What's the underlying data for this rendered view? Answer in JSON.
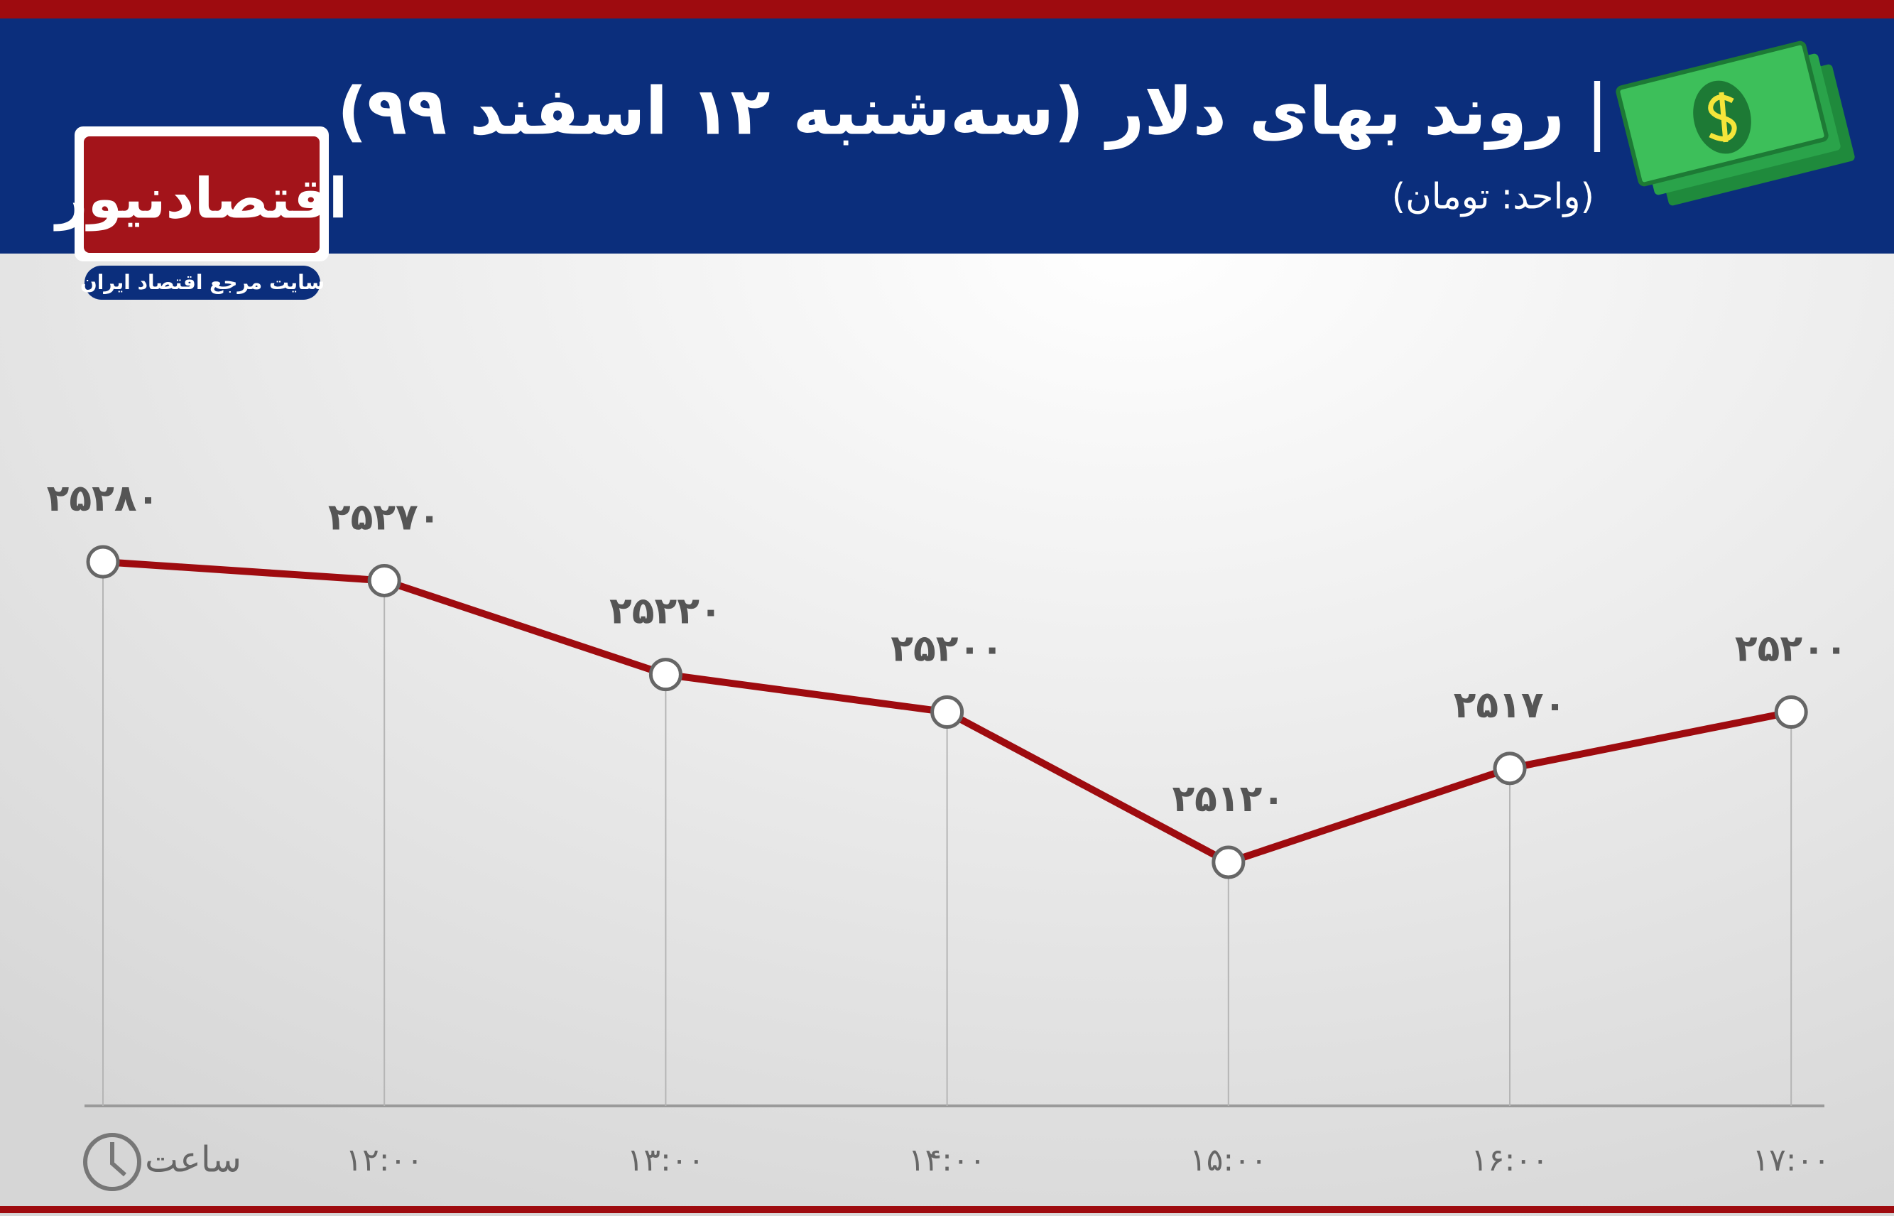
{
  "logo": {
    "name": "اقتصادنیوز",
    "tagline": "سایت مرجع اقتصاد ایران"
  },
  "chart_data": {
    "type": "line",
    "title": "روند بهای دلار (سه‌شنبه ۱۲ اسفند ۹۹)",
    "subtitle": "(واحد: تومان)",
    "x_label": "ساعت",
    "categories": [
      null,
      "۱۲:۰۰",
      "۱۳:۰۰",
      "۱۴:۰۰",
      "۱۵:۰۰",
      "۱۶:۰۰",
      "۱۷:۰۰"
    ],
    "values": [
      25280,
      25270,
      25220,
      25200,
      25120,
      25170,
      25200
    ],
    "value_labels": [
      "۲۵۲۸۰",
      "۲۵۲۷۰",
      "۲۵۲۲۰",
      "۲۵۲۰۰",
      "۲۵۱۲۰",
      "۲۵۱۷۰",
      "۲۵۲۰۰"
    ],
    "color": "#9e0b0f"
  }
}
